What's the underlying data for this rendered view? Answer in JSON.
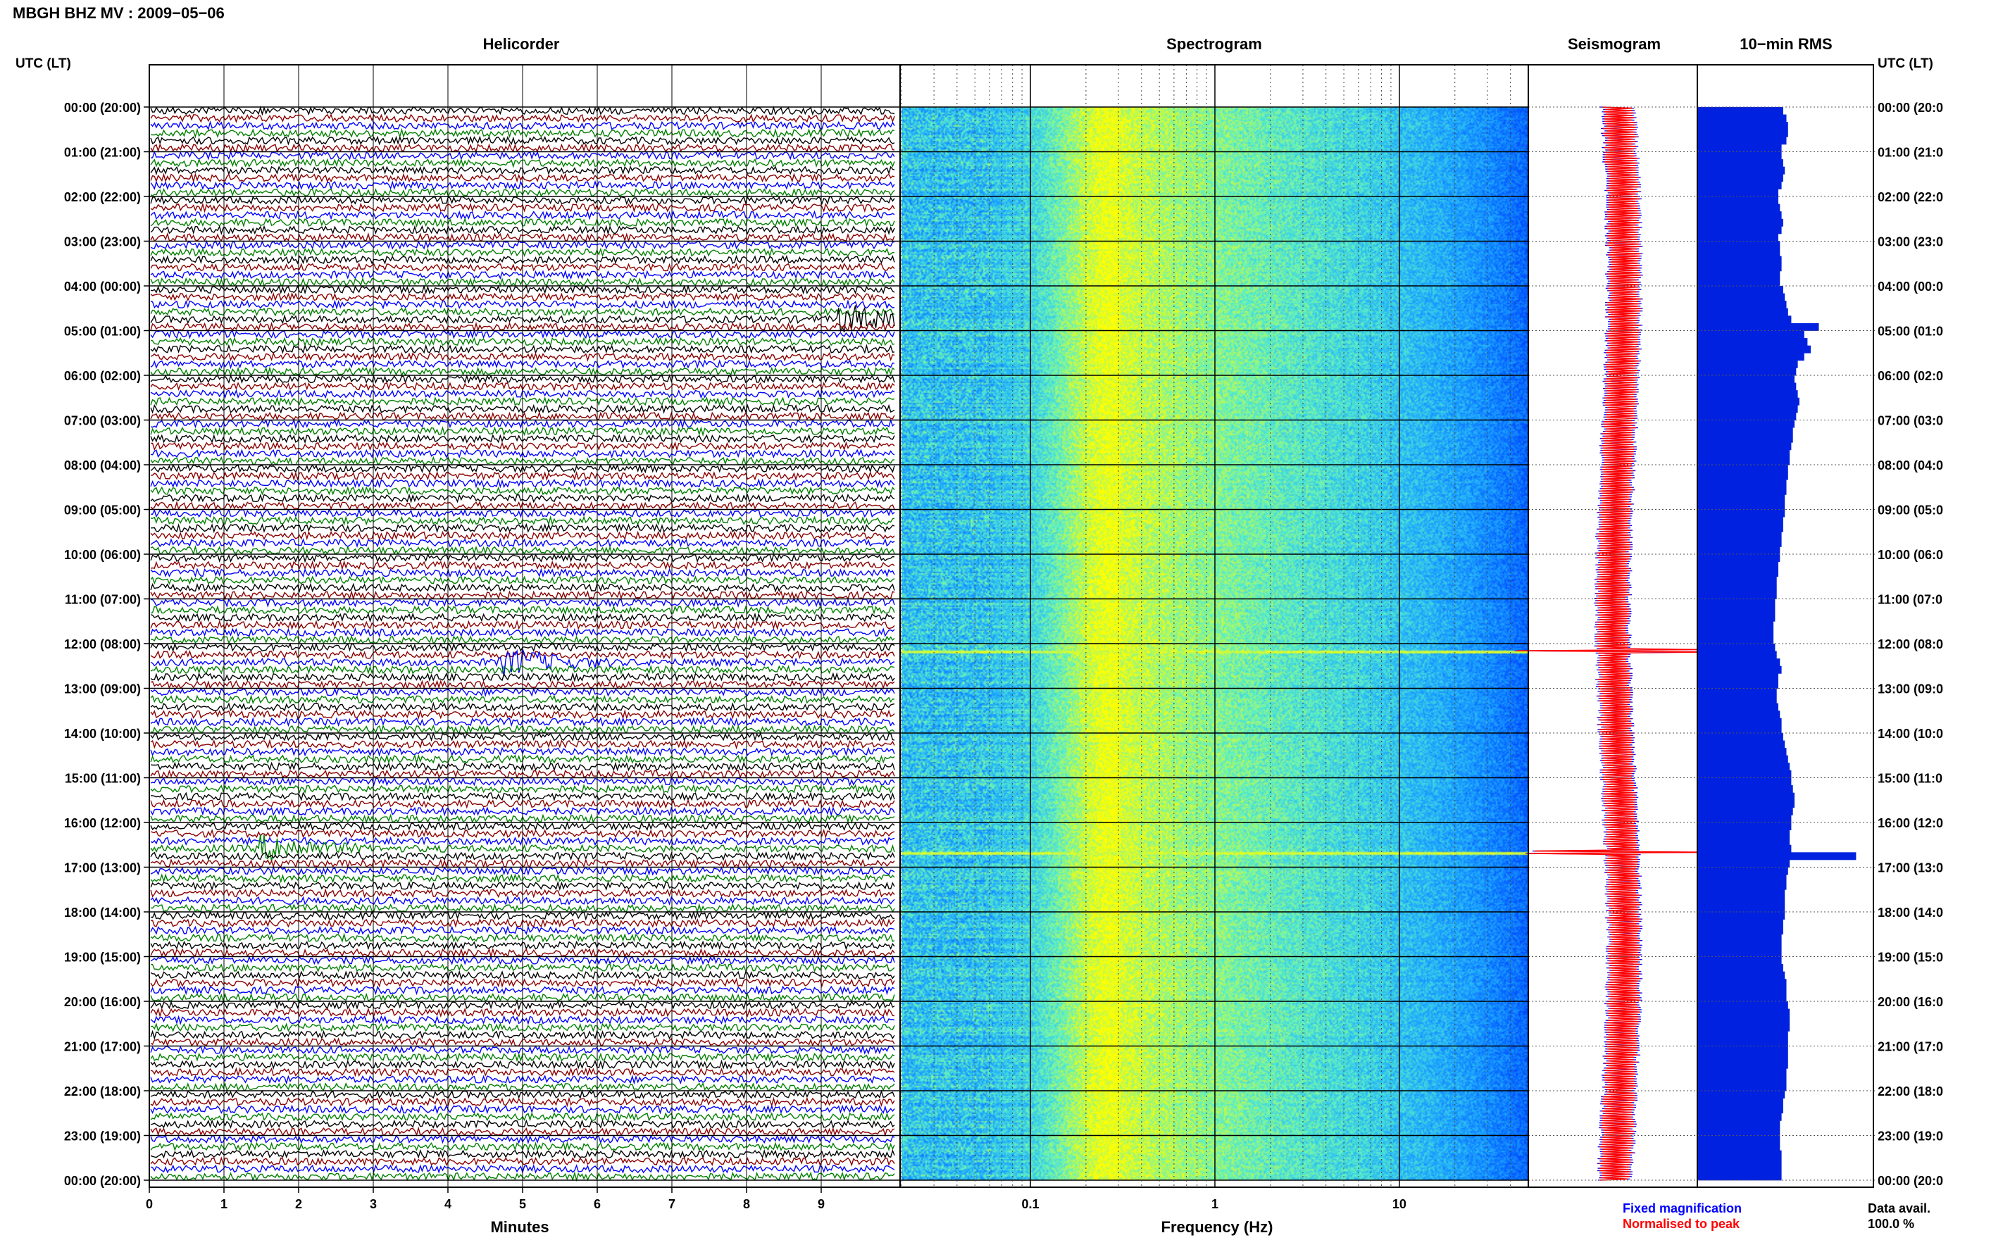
{
  "page": {
    "title": "MBGH BHZ MV : 2009−05−06",
    "utc_lt_left": "UTC (LT)",
    "utc_lt_right": "UTC (LT)"
  },
  "panels": {
    "helicorder": "Helicorder",
    "spectrogram": "Spectrogram",
    "seismogram": "Seismogram",
    "rms": "10−min RMS"
  },
  "axes": {
    "minutes_label": "Minutes",
    "minute_ticks": [
      "0",
      "1",
      "2",
      "3",
      "4",
      "5",
      "6",
      "7",
      "8",
      "9"
    ],
    "frequency_label": "Frequency (Hz)",
    "frequency_ticks": [
      "0.1",
      "1",
      "10"
    ],
    "frequency_range_hz": [
      0.02,
      50
    ],
    "frequency_scale": "log"
  },
  "hours_left": [
    "00:00 (20:00)",
    "01:00 (21:00)",
    "02:00 (22:00)",
    "03:00 (23:00)",
    "04:00 (00:00)",
    "05:00 (01:00)",
    "06:00 (02:00)",
    "07:00 (03:00)",
    "08:00 (04:00)",
    "09:00 (05:00)",
    "10:00 (06:00)",
    "11:00 (07:00)",
    "12:00 (08:00)",
    "13:00 (09:00)",
    "14:00 (10:00)",
    "15:00 (11:00)",
    "16:00 (12:00)",
    "17:00 (13:00)",
    "18:00 (14:00)",
    "19:00 (15:00)",
    "20:00 (16:00)",
    "21:00 (17:00)",
    "22:00 (18:00)",
    "23:00 (19:00)",
    "00:00 (20:00)"
  ],
  "hours_right": [
    "00:00 (20:0",
    "01:00 (21:0",
    "02:00 (22:0",
    "03:00 (23:0",
    "04:00 (00:0",
    "05:00 (01:0",
    "06:00 (02:0",
    "07:00 (03:0",
    "08:00 (04:0",
    "09:00 (05:0",
    "10:00 (06:0",
    "11:00 (07:0",
    "12:00 (08:0",
    "13:00 (09:0",
    "14:00 (10:0",
    "15:00 (11:0",
    "16:00 (12:0",
    "17:00 (13:0",
    "18:00 (14:0",
    "19:00 (15:0",
    "20:00 (16:0",
    "21:00 (17:0",
    "22:00 (18:0",
    "23:00 (19:0",
    "00:00 (20:0"
  ],
  "legend": {
    "fixed": "Fixed magnification",
    "normalised": "Normalised to peak",
    "fixed_color": "#0000ff",
    "normalised_color": "#ff0000"
  },
  "data_availability": {
    "label": "Data avail.",
    "value": "100.0 %"
  },
  "chart_data": {
    "type": "heatmap",
    "station": "MBGH",
    "channel": "BHZ",
    "network": "MV",
    "date": "2009-05-06",
    "helicorder": {
      "lines_per_hour": 6,
      "minutes_per_line": 10,
      "trace_colors": [
        "#000000",
        "#8b0000",
        "#0000ff",
        "#008000"
      ],
      "notable_events": [
        {
          "time_utc": "04:40",
          "minute": 9.5
        },
        {
          "time_utc": "12:20",
          "minute": 5.0
        },
        {
          "time_utc": "16:30",
          "minute": 1.7
        }
      ]
    },
    "spectrogram": {
      "colormap": [
        "#0000a0",
        "#0050ff",
        "#20b0ff",
        "#60ffb0",
        "#ffff00"
      ],
      "peak_band_hz": [
        0.2,
        0.4
      ],
      "notable_bursts_utc": [
        "12:10",
        "16:40"
      ]
    },
    "rms_10min": [
      [
        "00:00",
        53
      ],
      [
        "00:10",
        55
      ],
      [
        "00:20",
        56
      ],
      [
        "00:30",
        56
      ],
      [
        "00:40",
        55
      ],
      [
        "00:50",
        52
      ],
      [
        "01:00",
        52
      ],
      [
        "01:10",
        53
      ],
      [
        "01:20",
        54
      ],
      [
        "01:30",
        53
      ],
      [
        "01:40",
        52
      ],
      [
        "01:50",
        50
      ],
      [
        "02:00",
        50
      ],
      [
        "02:10",
        51
      ],
      [
        "02:20",
        52
      ],
      [
        "02:30",
        53
      ],
      [
        "02:40",
        52
      ],
      [
        "02:50",
        50
      ],
      [
        "03:00",
        51
      ],
      [
        "03:10",
        51
      ],
      [
        "03:20",
        52
      ],
      [
        "03:30",
        52
      ],
      [
        "03:40",
        51
      ],
      [
        "03:50",
        51
      ],
      [
        "04:00",
        53
      ],
      [
        "04:10",
        54
      ],
      [
        "04:20",
        55
      ],
      [
        "04:30",
        56
      ],
      [
        "04:40",
        58
      ],
      [
        "04:50",
        75
      ],
      [
        "05:00",
        66
      ],
      [
        "05:10",
        68
      ],
      [
        "05:20",
        70
      ],
      [
        "05:30",
        66
      ],
      [
        "05:40",
        62
      ],
      [
        "05:50",
        61
      ],
      [
        "06:00",
        60
      ],
      [
        "06:10",
        61
      ],
      [
        "06:20",
        62
      ],
      [
        "06:30",
        63
      ],
      [
        "06:40",
        62
      ],
      [
        "06:50",
        61
      ],
      [
        "07:00",
        60
      ],
      [
        "07:10",
        59
      ],
      [
        "07:20",
        59
      ],
      [
        "07:30",
        58
      ],
      [
        "07:40",
        57
      ],
      [
        "07:50",
        57
      ],
      [
        "08:00",
        56
      ],
      [
        "08:10",
        56
      ],
      [
        "08:20",
        55
      ],
      [
        "08:30",
        55
      ],
      [
        "08:40",
        54
      ],
      [
        "08:50",
        54
      ],
      [
        "09:00",
        54
      ],
      [
        "09:10",
        53
      ],
      [
        "09:20",
        53
      ],
      [
        "09:30",
        52
      ],
      [
        "09:40",
        52
      ],
      [
        "09:50",
        51
      ],
      [
        "10:00",
        51
      ],
      [
        "10:10",
        50
      ],
      [
        "10:20",
        50
      ],
      [
        "10:30",
        49
      ],
      [
        "10:40",
        49
      ],
      [
        "10:50",
        49
      ],
      [
        "11:00",
        48
      ],
      [
        "11:10",
        48
      ],
      [
        "11:20",
        48
      ],
      [
        "11:30",
        47
      ],
      [
        "11:40",
        47
      ],
      [
        "11:50",
        47
      ],
      [
        "12:00",
        48
      ],
      [
        "12:10",
        49
      ],
      [
        "12:20",
        51
      ],
      [
        "12:30",
        52
      ],
      [
        "12:40",
        50
      ],
      [
        "12:50",
        50
      ],
      [
        "13:00",
        49
      ],
      [
        "13:10",
        49
      ],
      [
        "13:20",
        50
      ],
      [
        "13:30",
        51
      ],
      [
        "13:40",
        52
      ],
      [
        "13:50",
        52
      ],
      [
        "14:00",
        53
      ],
      [
        "14:10",
        54
      ],
      [
        "14:20",
        55
      ],
      [
        "14:30",
        56
      ],
      [
        "14:40",
        57
      ],
      [
        "14:50",
        58
      ],
      [
        "15:00",
        58
      ],
      [
        "15:10",
        59
      ],
      [
        "15:20",
        60
      ],
      [
        "15:30",
        60
      ],
      [
        "15:40",
        59
      ],
      [
        "15:50",
        58
      ],
      [
        "16:00",
        58
      ],
      [
        "16:10",
        57
      ],
      [
        "16:20",
        57
      ],
      [
        "16:30",
        58
      ],
      [
        "16:40",
        98
      ],
      [
        "16:50",
        57
      ],
      [
        "17:00",
        56
      ],
      [
        "17:10",
        55
      ],
      [
        "17:20",
        55
      ],
      [
        "17:30",
        54
      ],
      [
        "17:40",
        54
      ],
      [
        "17:50",
        54
      ],
      [
        "18:00",
        54
      ],
      [
        "18:10",
        53
      ],
      [
        "18:20",
        53
      ],
      [
        "18:30",
        52
      ],
      [
        "18:40",
        52
      ],
      [
        "18:50",
        52
      ],
      [
        "19:00",
        52
      ],
      [
        "19:10",
        53
      ],
      [
        "19:20",
        54
      ],
      [
        "19:30",
        55
      ],
      [
        "19:40",
        55
      ],
      [
        "19:50",
        55
      ],
      [
        "20:00",
        56
      ],
      [
        "20:10",
        57
      ],
      [
        "20:20",
        57
      ],
      [
        "20:30",
        57
      ],
      [
        "20:40",
        56
      ],
      [
        "20:50",
        56
      ],
      [
        "21:00",
        56
      ],
      [
        "21:10",
        56
      ],
      [
        "21:20",
        56
      ],
      [
        "21:30",
        55
      ],
      [
        "21:40",
        55
      ],
      [
        "21:50",
        55
      ],
      [
        "22:00",
        54
      ],
      [
        "22:10",
        53
      ],
      [
        "22:20",
        53
      ],
      [
        "22:30",
        52
      ],
      [
        "22:40",
        51
      ],
      [
        "22:50",
        51
      ],
      [
        "23:00",
        51
      ],
      [
        "23:10",
        51
      ],
      [
        "23:20",
        52
      ],
      [
        "23:30",
        52
      ],
      [
        "23:40",
        52
      ],
      [
        "23:50",
        52
      ]
    ]
  }
}
